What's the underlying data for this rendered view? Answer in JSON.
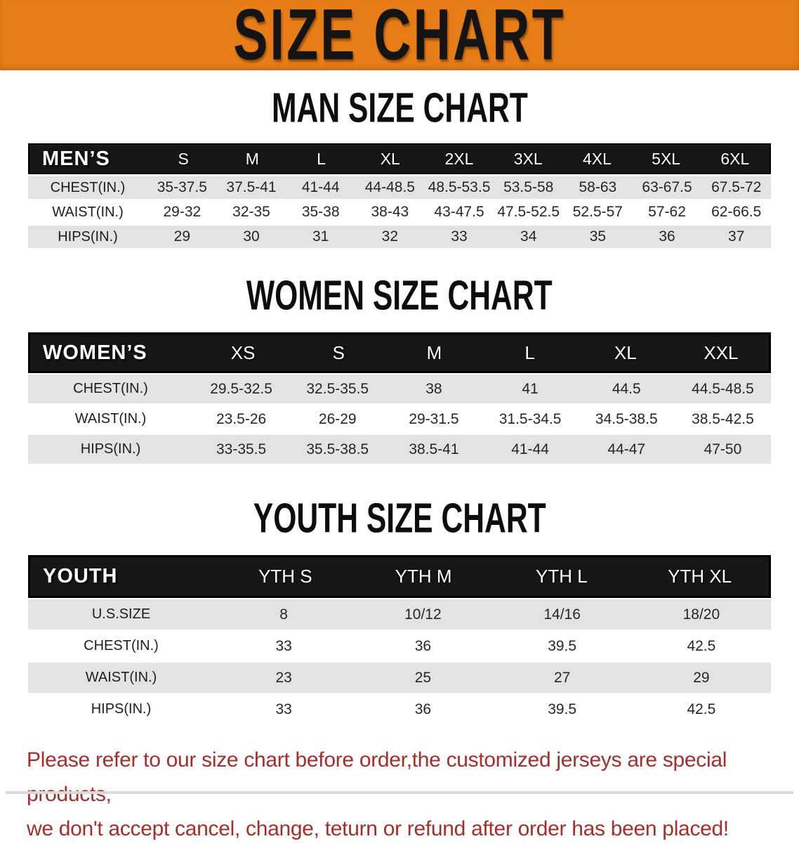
{
  "banner": {
    "title": "SIZE CHART"
  },
  "colors": {
    "banner_bg": "#e67d17",
    "header_bg": "#161616",
    "row_shade": "#e3e3e3",
    "disclaimer_color": "#a32f2c"
  },
  "sections": [
    {
      "heading": "MAN SIZE CHART",
      "label": "MEN’S",
      "columns": [
        "S",
        "M",
        "L",
        "XL",
        "2XL",
        "3XL",
        "4XL",
        "5XL",
        "6XL"
      ],
      "rows": [
        {
          "label": "CHEST(IN.)",
          "shaded": true,
          "values": [
            "35-37.5",
            "37.5-41",
            "41-44",
            "44-48.5",
            "48.5-53.5",
            "53.5-58",
            "58-63",
            "63-67.5",
            "67.5-72"
          ]
        },
        {
          "label": "WAIST(IN.)",
          "shaded": false,
          "values": [
            "29-32",
            "32-35",
            "35-38",
            "38-43",
            "43-47.5",
            "47.5-52.5",
            "52.5-57",
            "57-62",
            "62-66.5"
          ]
        },
        {
          "label": "HIPS(IN.)",
          "shaded": true,
          "values": [
            "29",
            "30",
            "31",
            "32",
            "33",
            "34",
            "35",
            "36",
            "37"
          ]
        }
      ]
    },
    {
      "heading": "WOMEN SIZE CHART",
      "label": "WOMEN’S",
      "columns": [
        "XS",
        "S",
        "M",
        "L",
        "XL",
        "XXL"
      ],
      "rows": [
        {
          "label": "CHEST(IN.)",
          "shaded": true,
          "values": [
            "29.5-32.5",
            "32.5-35.5",
            "38",
            "41",
            "44.5",
            "44.5-48.5"
          ]
        },
        {
          "label": "WAIST(IN.)",
          "shaded": false,
          "values": [
            "23.5-26",
            "26-29",
            "29-31.5",
            "31.5-34.5",
            "34.5-38.5",
            "38.5-42.5"
          ]
        },
        {
          "label": "HIPS(IN.)",
          "shaded": true,
          "values": [
            "33-35.5",
            "35.5-38.5",
            "38.5-41",
            "41-44",
            "44-47",
            "47-50"
          ]
        }
      ]
    },
    {
      "heading": "YOUTH SIZE CHART",
      "label": "YOUTH",
      "columns": [
        "YTH S",
        "YTH M",
        "YTH L",
        "YTH XL"
      ],
      "rows": [
        {
          "label": "U.S.SIZE",
          "shaded": true,
          "values": [
            "8",
            "10/12",
            "14/16",
            "18/20"
          ]
        },
        {
          "label": "CHEST(IN.)",
          "shaded": false,
          "values": [
            "33",
            "36",
            "39.5",
            "42.5"
          ]
        },
        {
          "label": "WAIST(IN.)",
          "shaded": true,
          "values": [
            "23",
            "25",
            "27",
            "29"
          ]
        },
        {
          "label": "HIPS(IN.)",
          "shaded": false,
          "values": [
            "33",
            "36",
            "39.5",
            "42.5"
          ]
        }
      ]
    }
  ],
  "disclaimer": {
    "line1": "Please refer to our size chart before order,the customized jerseys are special products,",
    "line2": "we don't accept cancel, change, teturn or refund after order has been placed!"
  }
}
